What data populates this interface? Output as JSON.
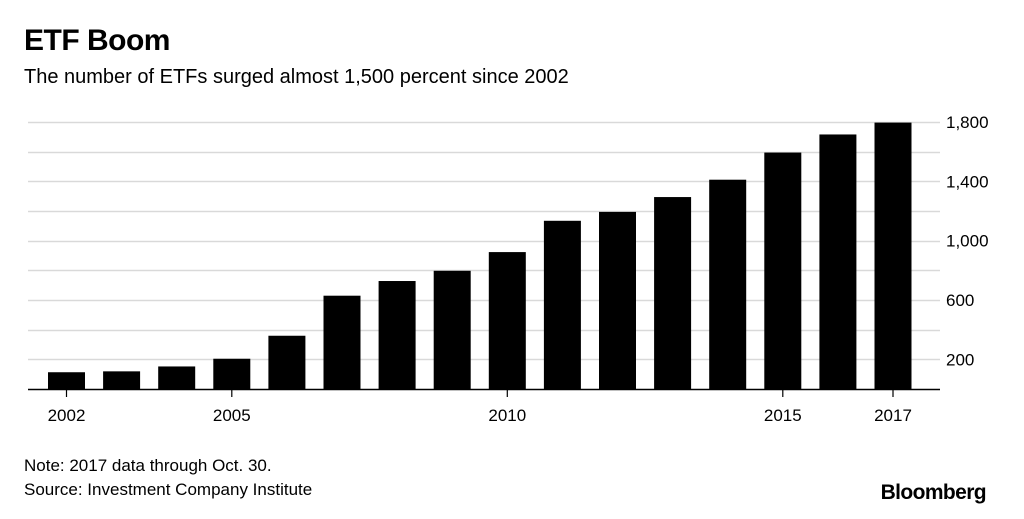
{
  "header": {
    "title": "ETF Boom",
    "subtitle": "The number of ETFs surged almost 1,500 percent since 2002"
  },
  "footer": {
    "note": "Note: 2017 data through Oct. 30.",
    "source": "Source: Investment Company Institute",
    "brand": "Bloomberg"
  },
  "chart_data": {
    "type": "bar",
    "title": "ETF Boom",
    "subtitle": "The number of ETFs surged almost 1,500 percent since 2002",
    "categories": [
      "2002",
      "2003",
      "2004",
      "2005",
      "2006",
      "2007",
      "2008",
      "2009",
      "2010",
      "2011",
      "2012",
      "2013",
      "2014",
      "2015",
      "2016",
      "2017"
    ],
    "values": [
      113,
      119,
      152,
      204,
      359,
      629,
      728,
      797,
      923,
      1134,
      1194,
      1294,
      1411,
      1594,
      1716,
      1796
    ],
    "x_tick_labels": [
      "2002",
      "2005",
      "2010",
      "2015",
      "2017"
    ],
    "y_ticks": [
      200,
      600,
      1000,
      1400,
      1800
    ],
    "y_tick_labels": [
      "200",
      "600",
      "1,000",
      "1,400",
      "1,800"
    ],
    "ylim": [
      0,
      1800
    ],
    "y_axis_side": "right",
    "grid": true,
    "bar_color": "#000000",
    "grid_color": "#d9d9d9"
  }
}
